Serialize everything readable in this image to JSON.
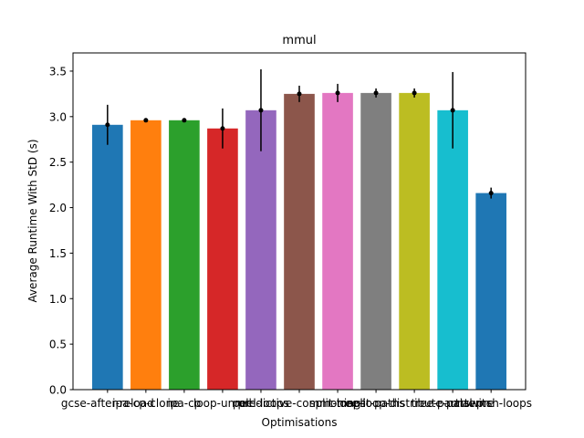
{
  "chart_data": {
    "type": "bar",
    "title": "mmul",
    "xlabel": "Optimisations",
    "ylabel": "Average Runtime With StD (s)",
    "ylim": [
      0,
      3.7
    ],
    "yticks": [
      0.0,
      0.5,
      1.0,
      1.5,
      2.0,
      2.5,
      3.0,
      3.5
    ],
    "ytick_labels": [
      "0.0",
      "0.5",
      "1.0",
      "1.5",
      "2.0",
      "2.5",
      "3.0",
      "3.5"
    ],
    "grid": false,
    "categories": [
      "gcse-after-reload",
      "ipa-cp-clone",
      "ipa-cp",
      "loop-unroll",
      "peel-loops",
      "predictive-commoning",
      "split-loops",
      "split-paths",
      "tree-loop-distribute-patterns",
      "tree-partial-pre",
      "unswitch-loops"
    ],
    "values": [
      2.91,
      2.96,
      2.96,
      2.87,
      3.07,
      3.25,
      3.26,
      3.26,
      3.26,
      3.07,
      2.16
    ],
    "errors": [
      0.22,
      0.02,
      0.01,
      0.22,
      0.45,
      0.09,
      0.1,
      0.05,
      0.05,
      0.42,
      0.06
    ],
    "colors": [
      "#1f77b4",
      "#ff7f0e",
      "#2ca02c",
      "#d62728",
      "#9467bd",
      "#8c564b",
      "#e377c2",
      "#7f7f7f",
      "#bcbd22",
      "#17becf",
      "#1f77b4"
    ]
  }
}
